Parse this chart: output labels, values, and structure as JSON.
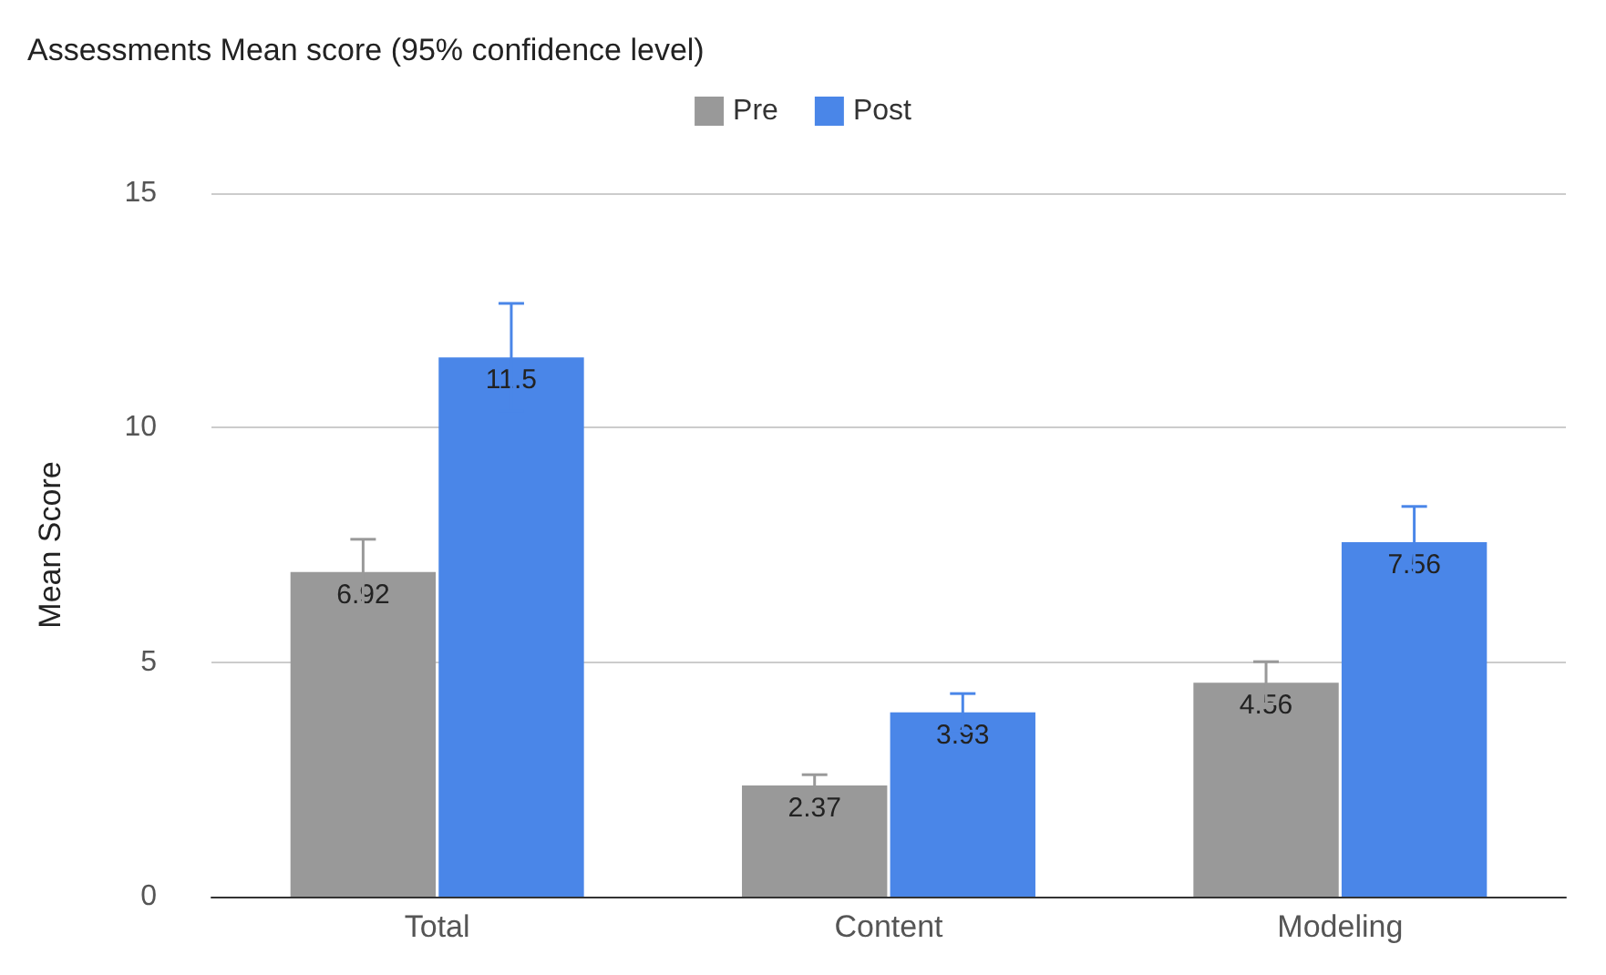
{
  "chart_data": {
    "type": "bar",
    "title": "Assessments Mean score (95% confidence level)",
    "ylabel": "Mean Score",
    "categories": [
      "Total",
      "Content",
      "Modeling"
    ],
    "series": [
      {
        "name": "Pre",
        "color": "#999999",
        "values": [
          6.92,
          2.37,
          4.56
        ],
        "errors": [
          0.7,
          0.23,
          0.45
        ]
      },
      {
        "name": "Post",
        "color": "#4a86e8",
        "values": [
          11.5,
          3.93,
          7.56
        ],
        "errors": [
          1.15,
          0.4,
          0.76
        ]
      }
    ],
    "ylim": [
      0,
      15
    ],
    "yticks": [
      0,
      5,
      10,
      15
    ],
    "grid": "y",
    "legend": "top",
    "data_labels": true
  }
}
